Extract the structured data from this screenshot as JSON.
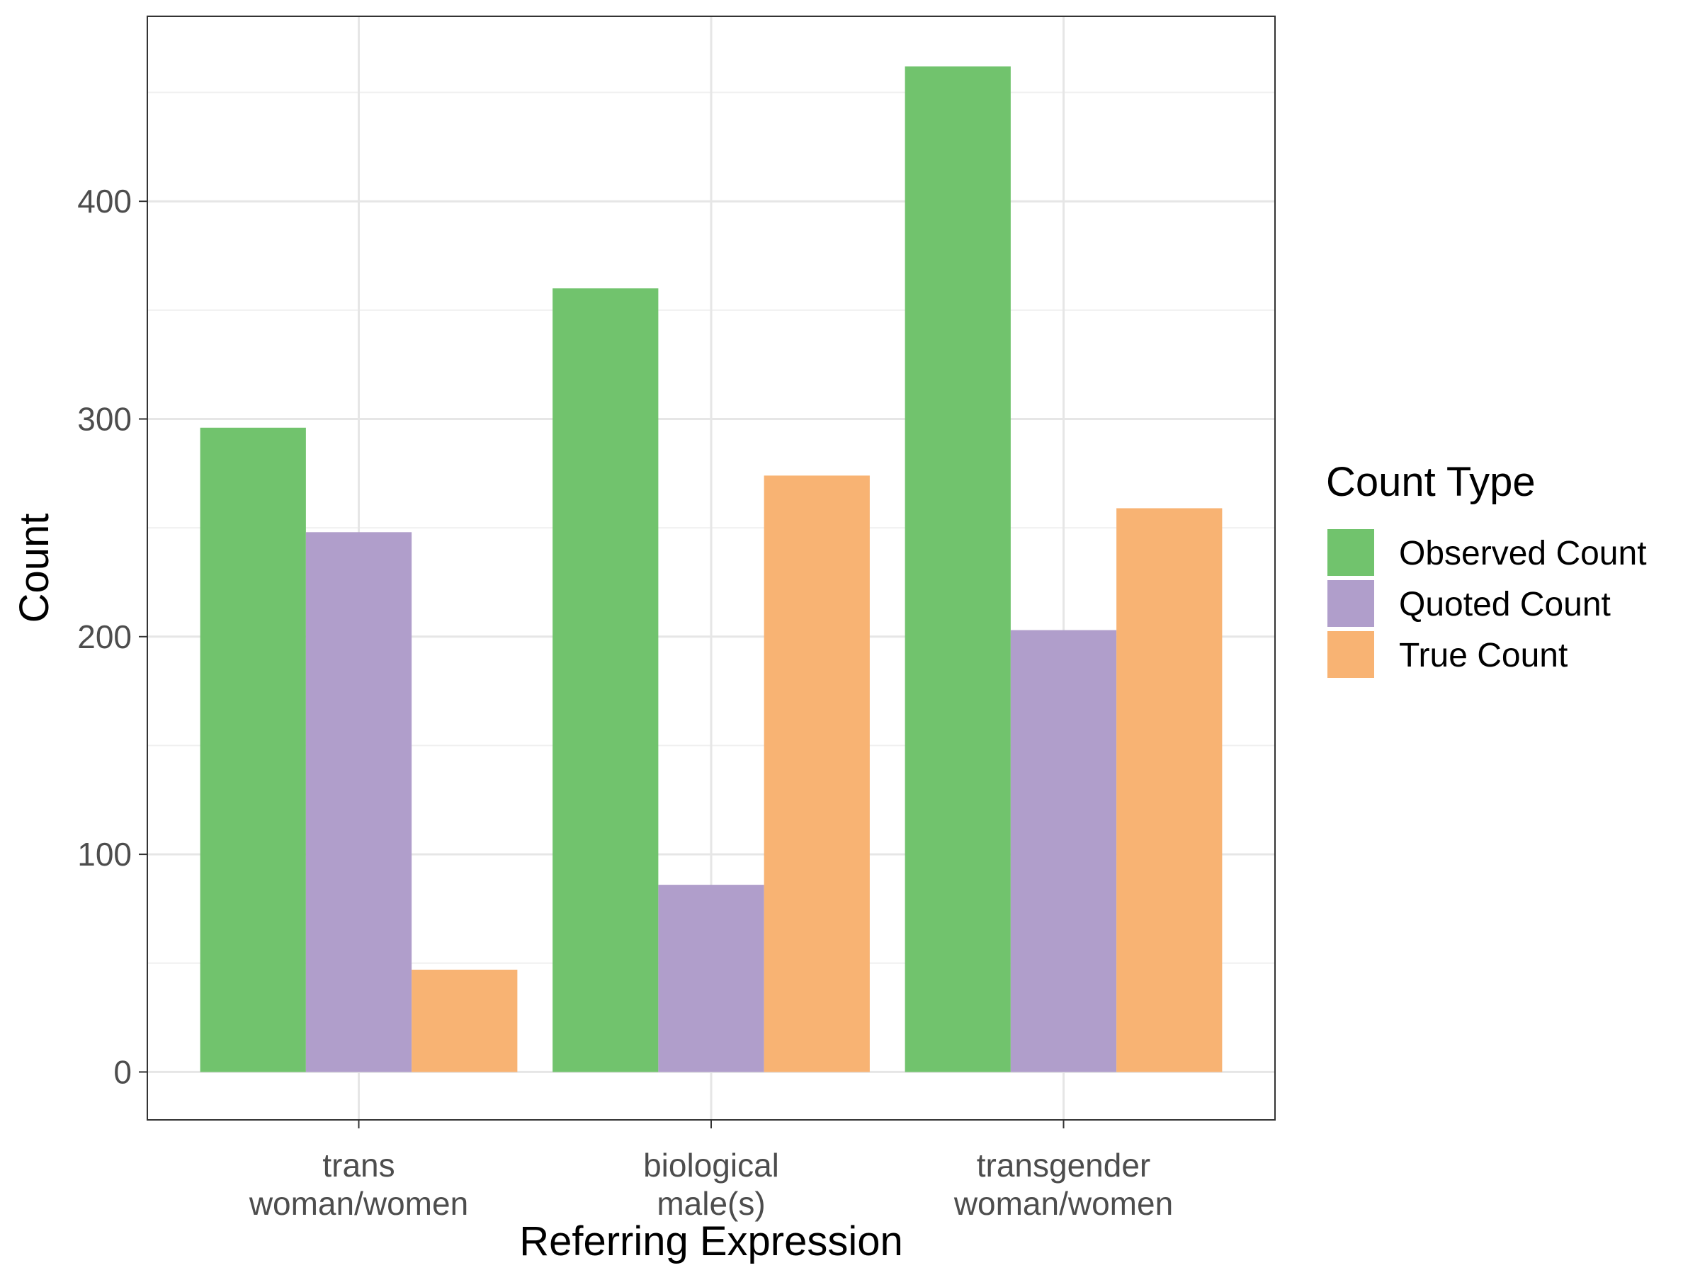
{
  "chart_data": {
    "type": "bar",
    "categories": [
      "trans\nwoman/women",
      "biological\nmale(s)",
      "transgender\nwoman/women"
    ],
    "series": [
      {
        "name": "Observed Count",
        "values": [
          296,
          360,
          462
        ],
        "color": "#71c36d"
      },
      {
        "name": "Quoted Count",
        "values": [
          248,
          86,
          203
        ],
        "color": "#b09ecb"
      },
      {
        "name": "True Count",
        "values": [
          47,
          274,
          259
        ],
        "color": "#f8b373"
      }
    ],
    "title": "",
    "xlabel": "Referring Expression",
    "ylabel": "Count",
    "ylim": [
      -22,
      485
    ],
    "yticks": [
      0,
      100,
      200,
      300,
      400
    ],
    "ytick_labels": [
      "0",
      "100",
      "200",
      "300",
      "400"
    ],
    "grid": true,
    "legend": {
      "title": "Count Type",
      "position": "right"
    }
  }
}
